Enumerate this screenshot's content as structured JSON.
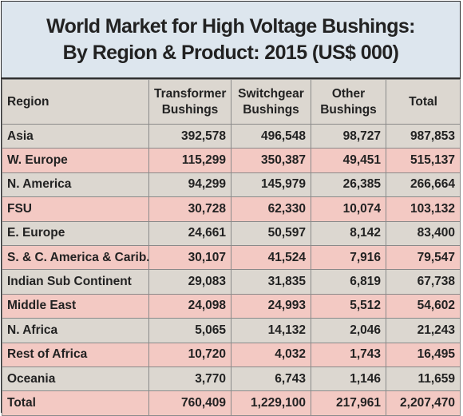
{
  "chart_data": {
    "type": "table",
    "title_line1": "World Market for High Voltage Bushings:",
    "title_line2": "By Region & Product: 2015 (US$ 000)",
    "columns": [
      {
        "line1": "Region",
        "line2": ""
      },
      {
        "line1": "Transformer",
        "line2": "Bushings"
      },
      {
        "line1": "Switchgear",
        "line2": "Bushings"
      },
      {
        "line1": "Other",
        "line2": "Bushings"
      },
      {
        "line1": "Total",
        "line2": ""
      }
    ],
    "rows": [
      [
        "Asia",
        "392,578",
        "496,548",
        "98,727",
        "987,853"
      ],
      [
        "W. Europe",
        "115,299",
        "350,387",
        "49,451",
        "515,137"
      ],
      [
        "N. America",
        "94,299",
        "145,979",
        "26,385",
        "266,664"
      ],
      [
        "FSU",
        "30,728",
        "62,330",
        "10,074",
        "103,132"
      ],
      [
        "E. Europe",
        "24,661",
        "50,597",
        "8,142",
        "83,400"
      ],
      [
        "S. & C. America & Carib.",
        "30,107",
        "41,524",
        "7,916",
        "79,547"
      ],
      [
        "Indian Sub Continent",
        "29,083",
        "31,835",
        "6,819",
        "67,738"
      ],
      [
        "Middle East",
        "24,098",
        "24,993",
        "5,512",
        "54,602"
      ],
      [
        "N. Africa",
        "5,065",
        "14,132",
        "2,046",
        "21,243"
      ],
      [
        "Rest of Africa",
        "10,720",
        "4,032",
        "1,743",
        "16,495"
      ],
      [
        "Oceania",
        "3,770",
        "6,743",
        "1,146",
        "11,659"
      ],
      [
        "Total",
        "760,409",
        "1,229,100",
        "217,961",
        "2,207,470"
      ]
    ],
    "colors": {
      "title_bg": "#dde6ee",
      "band_a": "#dcd7d0",
      "band_b": "#f3c9c3"
    }
  }
}
